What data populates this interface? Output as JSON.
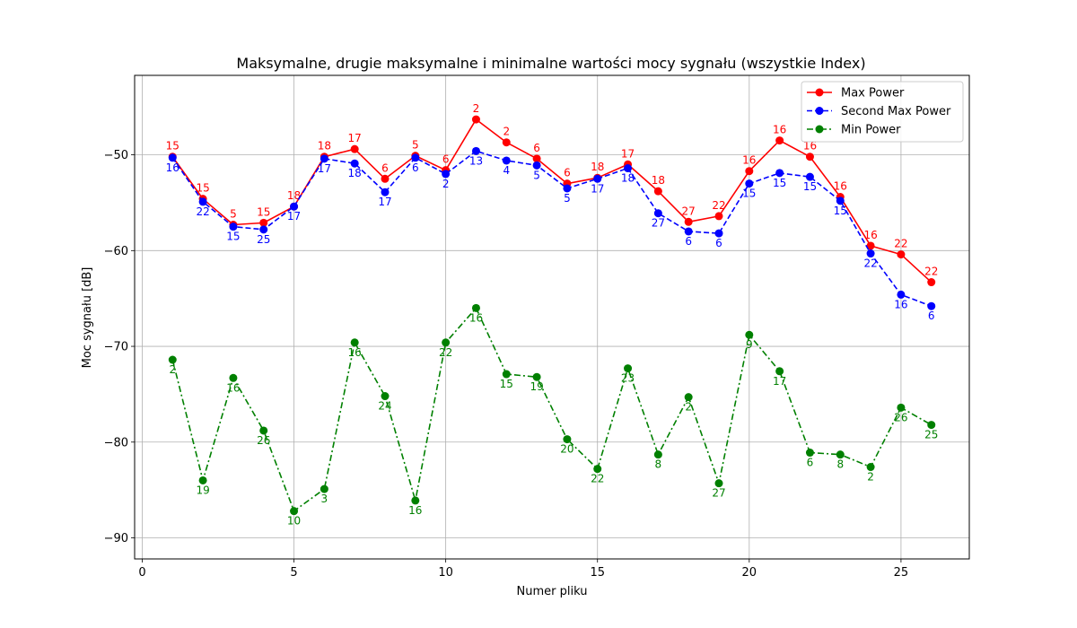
{
  "chart_data": {
    "type": "line",
    "title": "Maksymalne, drugie maksymalne i minimalne wartości mocy sygnału (wszystkie Index)",
    "xlabel": "Numer pliku",
    "ylabel": "Moc sygnału [dB]",
    "xlim": [
      -0.25,
      27.25
    ],
    "ylim": [
      -92.2,
      -41.7
    ],
    "x_ticks": [
      0,
      5,
      10,
      15,
      20,
      25
    ],
    "y_ticks": [
      -90,
      -80,
      -70,
      -60,
      -50
    ],
    "grid": true,
    "legend_position": "top-right",
    "x": [
      1,
      2,
      3,
      4,
      5,
      6,
      7,
      8,
      9,
      10,
      11,
      12,
      13,
      14,
      15,
      16,
      17,
      18,
      19,
      20,
      21,
      22,
      23,
      24,
      25,
      26
    ],
    "series": [
      {
        "name": "Max Power",
        "color": "#ff0000",
        "line_style": "solid",
        "label_position": "above",
        "values": [
          -50.2,
          -54.6,
          -57.3,
          -57.1,
          -55.4,
          -50.2,
          -49.4,
          -52.5,
          -50.1,
          -51.6,
          -46.3,
          -48.7,
          -50.4,
          -53.0,
          -52.4,
          -51.0,
          -53.8,
          -57.0,
          -56.4,
          -51.7,
          -48.5,
          -50.2,
          -54.4,
          -59.5,
          -60.4,
          -63.3
        ],
        "labels": [
          "15",
          "15",
          "5",
          "15",
          "18",
          "18",
          "17",
          "6",
          "5",
          "6",
          "2",
          "2",
          "6",
          "6",
          "18",
          "17",
          "18",
          "27",
          "22",
          "16",
          "16",
          "16",
          "16",
          "16",
          "22",
          "22"
        ]
      },
      {
        "name": "Second Max Power",
        "color": "#0000ff",
        "line_style": "dashed",
        "label_position": "below",
        "values": [
          -50.3,
          -54.9,
          -57.5,
          -57.8,
          -55.4,
          -50.4,
          -50.9,
          -53.9,
          -50.3,
          -52.0,
          -49.6,
          -50.6,
          -51.1,
          -53.5,
          -52.5,
          -51.4,
          -56.1,
          -58.0,
          -58.2,
          -53.0,
          -51.9,
          -52.3,
          -54.8,
          -60.3,
          -64.6,
          -65.8
        ],
        "labels": [
          "16",
          "22",
          "15",
          "25",
          "17",
          "17",
          "18",
          "17",
          "6",
          "2",
          "13",
          "4",
          "5",
          "5",
          "17",
          "18",
          "27",
          "6",
          "6",
          "15",
          "15",
          "15",
          "15",
          "22",
          "16",
          "6"
        ]
      },
      {
        "name": "Min Power",
        "color": "#008000",
        "line_style": "dashdot",
        "label_position": "below",
        "values": [
          -71.4,
          -84.0,
          -73.3,
          -78.8,
          -87.2,
          -84.9,
          -69.6,
          -75.2,
          -86.1,
          -69.6,
          -66.0,
          -72.9,
          -73.2,
          -79.7,
          -82.8,
          -72.3,
          -81.3,
          -75.3,
          -84.3,
          -68.8,
          -72.6,
          -81.1,
          -81.3,
          -82.6,
          -76.4,
          -78.2
        ],
        "labels": [
          "2",
          "19",
          "16",
          "26",
          "10",
          "3",
          "16",
          "24",
          "16",
          "22",
          "16",
          "15",
          "19",
          "20",
          "22",
          "23",
          "8",
          "2",
          "27",
          "9",
          "17",
          "6",
          "8",
          "2",
          "26",
          "25"
        ]
      }
    ]
  }
}
